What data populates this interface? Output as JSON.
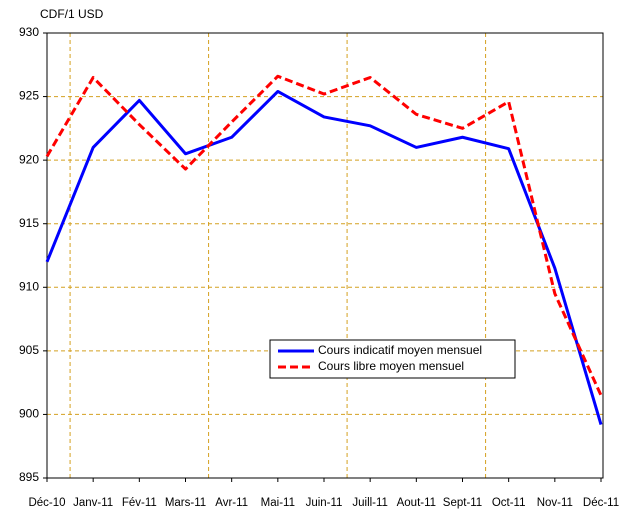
{
  "chart_data": {
    "type": "line",
    "y_label": "CDF/1 USD",
    "categories": [
      "Déc-10",
      "Janv-11",
      "Fév-11",
      "Mars-11",
      "Avr-11",
      "Mai-11",
      "Juin-11",
      "Juill-11",
      "Aout-11",
      "Sept-11",
      "Oct-11",
      "Nov-11",
      "Déc-11"
    ],
    "series": [
      {
        "name": "Cours indicatif moyen mensuel",
        "color": "#0000ff",
        "dash": false,
        "values": [
          912,
          921,
          924.7,
          920.5,
          921.8,
          925.4,
          923.4,
          922.7,
          921,
          921.8,
          920.9,
          911.5,
          899.2
        ]
      },
      {
        "name": "Cours libre moyen mensuel",
        "color": "#ff0000",
        "dash": true,
        "values": [
          920.3,
          926.5,
          922.8,
          919.3,
          923,
          926.6,
          925.2,
          926.5,
          923.6,
          922.5,
          924.6,
          909.5,
          901.5
        ]
      }
    ],
    "ylim": [
      895,
      930
    ],
    "yticks": [
      895,
      900,
      905,
      910,
      915,
      920,
      925,
      930
    ],
    "grid": true,
    "grid_color": "#d4a020"
  }
}
